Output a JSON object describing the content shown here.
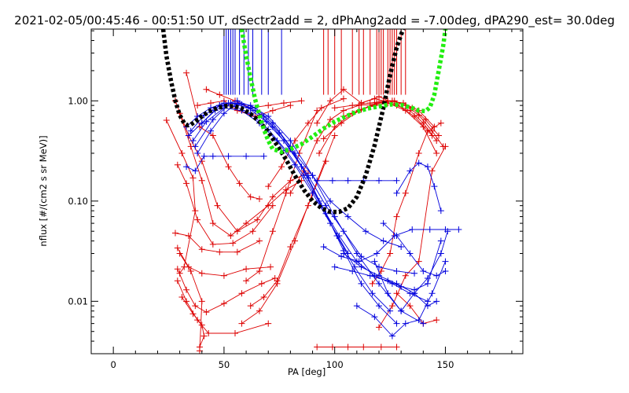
{
  "chart_data": {
    "type": "line",
    "title": "2021-02-05/00:45:46 - 00:51:50 UT, dSectr2add = 2, dPhAng2add = -7.00deg, dPA290_est=  30.0deg",
    "xlabel": "PA [deg]",
    "ylabel": "nflux [#/(cm2 s sr MeV)]",
    "xlim": [
      -10,
      185
    ],
    "ylim": [
      0.003,
      5.2
    ],
    "y_scale": "log",
    "grid": false,
    "x_ticks": [
      {
        "v": 0,
        "label": "0"
      },
      {
        "v": 50,
        "label": "50"
      },
      {
        "v": 100,
        "label": "100"
      },
      {
        "v": 150,
        "label": "150"
      }
    ],
    "y_ticks": [
      {
        "v": 0.01,
        "label": "0.01"
      },
      {
        "v": 0.1,
        "label": "0.10"
      },
      {
        "v": 1.0,
        "label": "1.00"
      }
    ],
    "colors": {
      "red": "#dd0000",
      "blue": "#0000dd",
      "black": "#000000",
      "green": "#22ee11"
    },
    "red_sector_pa": [
      95,
      97,
      100,
      103,
      108,
      111,
      113,
      116,
      119,
      120,
      121,
      122,
      124,
      125,
      126,
      127,
      128,
      130,
      132
    ],
    "blue_sector_pa": [
      50,
      51,
      52,
      53,
      54,
      55,
      57,
      59,
      61,
      63,
      67,
      70,
      76
    ],
    "series": [
      {
        "color": "red",
        "x": [
          24,
          31,
          36,
          37,
          32,
          30
        ],
        "y": [
          0.64,
          0.3,
          0.17,
          0.08,
          0.022,
          0.019
        ]
      },
      {
        "color": "red",
        "x": [
          33,
          39,
          45,
          52,
          57,
          62,
          66
        ],
        "y": [
          1.9,
          0.55,
          0.45,
          0.22,
          0.15,
          0.11,
          0.105
        ]
      },
      {
        "color": "red",
        "x": [
          28,
          34,
          40,
          47,
          56,
          65,
          72,
          80,
          88
        ],
        "y": [
          1.0,
          0.45,
          0.25,
          0.09,
          0.05,
          0.065,
          0.11,
          0.16,
          0.19
        ]
      },
      {
        "color": "red",
        "x": [
          30,
          35,
          40,
          45,
          53,
          60,
          70,
          78,
          85
        ],
        "y": [
          0.75,
          0.35,
          0.16,
          0.06,
          0.045,
          0.06,
          0.09,
          0.13,
          0.16
        ]
      },
      {
        "color": "red",
        "x": [
          29,
          33,
          38,
          45,
          54,
          63,
          72
        ],
        "y": [
          0.23,
          0.15,
          0.065,
          0.037,
          0.038,
          0.05,
          0.09
        ]
      },
      {
        "color": "red",
        "x": [
          28,
          34,
          40,
          48,
          56,
          66
        ],
        "y": [
          0.048,
          0.045,
          0.033,
          0.031,
          0.031,
          0.04
        ]
      },
      {
        "color": "red",
        "x": [
          29,
          34,
          40,
          50,
          60,
          71
        ],
        "y": [
          0.034,
          0.022,
          0.019,
          0.018,
          0.021,
          0.022
        ]
      },
      {
        "color": "red",
        "x": [
          29,
          33,
          37,
          42,
          50,
          58,
          67,
          73
        ],
        "y": [
          0.021,
          0.013,
          0.009,
          0.0078,
          0.0095,
          0.012,
          0.015,
          0.017
        ]
      },
      {
        "color": "red",
        "x": [
          29,
          33,
          38,
          43,
          55,
          70
        ],
        "y": [
          0.016,
          0.01,
          0.0065,
          0.0048,
          0.0048,
          0.006
        ]
      },
      {
        "color": "red",
        "x": [
          31,
          36,
          40,
          41,
          39
        ],
        "y": [
          0.011,
          0.0075,
          0.0058,
          0.0045,
          0.0035
        ]
      },
      {
        "color": "red",
        "x": [
          30,
          35,
          40,
          39
        ],
        "y": [
          0.03,
          0.02,
          0.01,
          0.0032
        ]
      },
      {
        "color": "red",
        "x": [
          42,
          48,
          55,
          62,
          70,
          77,
          85
        ],
        "y": [
          1.3,
          1.15,
          1.0,
          0.85,
          0.9,
          0.95,
          1.0
        ]
      },
      {
        "color": "red",
        "x": [
          38,
          44,
          50,
          56,
          64,
          72,
          80
        ],
        "y": [
          0.9,
          0.95,
          1.0,
          0.8,
          0.7,
          0.8,
          0.9
        ]
      },
      {
        "color": "red",
        "x": [
          60,
          66,
          72,
          78,
          84,
          92
        ],
        "y": [
          0.016,
          0.02,
          0.05,
          0.12,
          0.3,
          0.8
        ]
      },
      {
        "color": "red",
        "x": [
          62,
          68,
          74,
          80,
          88,
          96
        ],
        "y": [
          0.009,
          0.011,
          0.016,
          0.035,
          0.09,
          0.25
        ]
      },
      {
        "color": "red",
        "x": [
          58,
          66,
          74,
          82,
          90,
          100
        ],
        "y": [
          0.006,
          0.008,
          0.015,
          0.04,
          0.12,
          0.45
        ]
      },
      {
        "color": "red",
        "x": [
          70,
          76,
          82,
          88,
          94,
          104
        ],
        "y": [
          0.14,
          0.22,
          0.4,
          0.6,
          0.85,
          1.05
        ]
      },
      {
        "color": "red",
        "x": [
          95,
          103,
          111,
          119,
          127,
          135,
          141,
          147
        ],
        "y": [
          0.42,
          0.6,
          0.8,
          0.95,
          1.0,
          0.85,
          0.65,
          0.45
        ]
      },
      {
        "color": "red",
        "x": [
          93,
          100,
          108,
          116,
          124,
          132,
          140,
          146
        ],
        "y": [
          0.3,
          0.55,
          0.75,
          0.88,
          0.95,
          0.8,
          0.55,
          0.3
        ]
      },
      {
        "color": "red",
        "x": [
          92,
          98,
          104,
          112,
          120,
          128,
          136,
          144
        ],
        "y": [
          0.6,
          1.0,
          1.3,
          0.95,
          1.1,
          0.92,
          0.7,
          0.45
        ]
      },
      {
        "color": "red",
        "x": [
          100,
          108,
          116,
          124,
          131,
          138,
          145
        ],
        "y": [
          0.85,
          0.9,
          0.95,
          1.0,
          0.95,
          0.8,
          0.55
        ]
      },
      {
        "color": "red",
        "x": [
          104,
          112,
          120,
          126,
          132,
          138,
          144,
          149
        ],
        "y": [
          0.7,
          0.82,
          0.95,
          1.0,
          0.9,
          0.72,
          0.5,
          0.35
        ]
      },
      {
        "color": "red",
        "x": [
          112,
          118,
          122,
          128,
          134,
          140,
          146
        ],
        "y": [
          0.95,
          1.05,
          1.0,
          0.9,
          0.8,
          0.6,
          0.4
        ]
      },
      {
        "color": "red",
        "x": [
          80,
          86,
          92,
          98,
          104,
          111,
          118
        ],
        "y": [
          0.12,
          0.2,
          0.4,
          0.65,
          0.8,
          0.9,
          0.92
        ]
      },
      {
        "color": "red",
        "x": [
          117,
          121,
          125,
          128,
          132,
          138,
          142,
          148
        ],
        "y": [
          0.015,
          0.02,
          0.03,
          0.07,
          0.12,
          0.3,
          0.5,
          0.6
        ]
      },
      {
        "color": "red",
        "x": [
          120,
          126,
          132,
          138,
          144,
          150
        ],
        "y": [
          0.0055,
          0.009,
          0.018,
          0.025,
          0.2,
          0.35
        ]
      },
      {
        "color": "red",
        "x": [
          92,
          99,
          106,
          113,
          121,
          128
        ],
        "y": [
          0.0035,
          0.0035,
          0.0035,
          0.0035,
          0.0035,
          0.0035
        ]
      },
      {
        "color": "red",
        "x": [
          128,
          134,
          140,
          146
        ],
        "y": [
          0.012,
          0.009,
          0.006,
          0.0065
        ]
      },
      {
        "color": "blue",
        "x": [
          33,
          38,
          44,
          50,
          56,
          62,
          68,
          75,
          82,
          90,
          98,
          106,
          114,
          122,
          130
        ],
        "y": [
          0.55,
          0.7,
          0.85,
          0.95,
          0.95,
          0.85,
          0.7,
          0.48,
          0.3,
          0.18,
          0.1,
          0.07,
          0.05,
          0.04,
          0.035
        ]
      },
      {
        "color": "blue",
        "x": [
          34,
          40,
          46,
          52,
          58,
          64,
          72,
          80,
          88,
          96,
          104,
          112,
          120,
          128,
          136
        ],
        "y": [
          0.45,
          0.6,
          0.8,
          0.95,
          0.92,
          0.8,
          0.55,
          0.33,
          0.18,
          0.09,
          0.05,
          0.028,
          0.022,
          0.02,
          0.019
        ]
      },
      {
        "color": "blue",
        "x": [
          35,
          41,
          48,
          55,
          62,
          70,
          78,
          86,
          94,
          102,
          110,
          118,
          126,
          134,
          142
        ],
        "y": [
          0.5,
          0.72,
          0.9,
          0.88,
          0.75,
          0.52,
          0.32,
          0.18,
          0.09,
          0.045,
          0.025,
          0.018,
          0.015,
          0.012,
          0.01
        ]
      },
      {
        "color": "blue",
        "x": [
          36,
          42,
          50,
          58,
          66,
          74,
          82,
          90,
          98,
          106
        ],
        "y": [
          0.4,
          0.62,
          0.85,
          0.8,
          0.6,
          0.4,
          0.23,
          0.12,
          0.06,
          0.03
        ]
      },
      {
        "color": "blue",
        "x": [
          37,
          45,
          53,
          61,
          69,
          77,
          85,
          93,
          101,
          109,
          117,
          125
        ],
        "y": [
          0.35,
          0.65,
          0.95,
          0.85,
          0.62,
          0.4,
          0.22,
          0.1,
          0.045,
          0.022,
          0.012,
          0.008
        ]
      },
      {
        "color": "blue",
        "x": [
          38,
          44,
          50,
          56,
          62,
          70,
          80,
          90,
          100,
          110,
          120,
          130,
          140
        ],
        "y": [
          0.3,
          0.5,
          0.75,
          0.95,
          0.9,
          0.7,
          0.4,
          0.18,
          0.07,
          0.03,
          0.015,
          0.008,
          0.006
        ]
      },
      {
        "color": "blue",
        "x": [
          33,
          37,
          41,
          45,
          52,
          60,
          68
        ],
        "y": [
          0.22,
          0.2,
          0.28,
          0.28,
          0.28,
          0.28,
          0.28
        ]
      },
      {
        "color": "blue",
        "x": [
          40,
          48,
          56,
          64,
          72,
          80,
          88,
          96,
          104,
          112,
          120,
          128
        ],
        "y": [
          0.6,
          0.9,
          1.0,
          0.85,
          0.6,
          0.35,
          0.17,
          0.075,
          0.032,
          0.015,
          0.009,
          0.006
        ]
      },
      {
        "color": "blue",
        "x": [
          92,
          99,
          106,
          113,
          120,
          128
        ],
        "y": [
          0.16,
          0.16,
          0.16,
          0.16,
          0.16,
          0.16
        ]
      },
      {
        "color": "blue",
        "x": [
          95,
          103,
          111,
          119,
          127,
          135,
          143,
          150,
          156
        ],
        "y": [
          0.035,
          0.028,
          0.025,
          0.03,
          0.045,
          0.052,
          0.052,
          0.052,
          0.052
        ]
      },
      {
        "color": "blue",
        "x": [
          100,
          108,
          116,
          124,
          130,
          136,
          142,
          148
        ],
        "y": [
          0.022,
          0.02,
          0.018,
          0.016,
          0.014,
          0.013,
          0.015,
          0.04
        ]
      },
      {
        "color": "blue",
        "x": [
          110,
          118,
          126,
          132,
          138,
          144,
          150
        ],
        "y": [
          0.009,
          0.007,
          0.0045,
          0.006,
          0.0065,
          0.012,
          0.025
        ]
      },
      {
        "color": "blue",
        "x": [
          118,
          124,
          130,
          136,
          142,
          148,
          151
        ],
        "y": [
          0.025,
          0.012,
          0.008,
          0.012,
          0.017,
          0.03,
          0.05
        ]
      },
      {
        "color": "blue",
        "x": [
          122,
          128,
          134,
          140,
          146,
          150
        ],
        "y": [
          0.06,
          0.045,
          0.03,
          0.02,
          0.018,
          0.02
        ]
      },
      {
        "color": "blue",
        "x": [
          128,
          134,
          138,
          142,
          145,
          148
        ],
        "y": [
          0.12,
          0.2,
          0.24,
          0.22,
          0.14,
          0.08
        ]
      },
      {
        "color": "blue",
        "x": [
          104,
          112,
          120,
          128,
          136,
          142,
          146
        ],
        "y": [
          0.03,
          0.022,
          0.018,
          0.015,
          0.012,
          0.009,
          0.01
        ]
      }
    ],
    "fit_curves": [
      {
        "color": "black",
        "x": [
          22.5,
          24,
          26,
          28,
          30,
          32,
          33.5,
          35,
          37,
          40,
          43,
          47,
          51,
          55,
          58,
          62,
          66,
          70,
          74,
          78,
          82,
          86,
          90,
          94,
          98,
          102,
          106,
          110,
          114,
          118,
          122,
          125,
          128,
          130,
          131
        ],
        "y": [
          5.2,
          2.8,
          1.6,
          1.0,
          0.72,
          0.6,
          0.57,
          0.58,
          0.62,
          0.7,
          0.78,
          0.85,
          0.89,
          0.88,
          0.84,
          0.74,
          0.62,
          0.49,
          0.36,
          0.26,
          0.18,
          0.13,
          0.1,
          0.085,
          0.078,
          0.078,
          0.085,
          0.11,
          0.18,
          0.36,
          0.85,
          1.8,
          3.4,
          4.6,
          5.2
        ]
      },
      {
        "color": "green",
        "x": [
          58,
          60,
          62,
          64,
          66,
          68,
          70,
          72,
          76,
          80,
          85,
          90,
          95,
          100,
          105,
          110,
          115,
          120,
          125,
          130,
          135,
          138,
          141,
          143,
          145,
          147,
          149,
          150
        ],
        "y": [
          5.2,
          2.8,
          1.7,
          1.05,
          0.72,
          0.52,
          0.4,
          0.33,
          0.31,
          0.33,
          0.37,
          0.44,
          0.53,
          0.62,
          0.7,
          0.78,
          0.84,
          0.88,
          0.92,
          0.91,
          0.85,
          0.8,
          0.79,
          0.86,
          1.15,
          2.0,
          3.5,
          5.2
        ]
      }
    ]
  }
}
